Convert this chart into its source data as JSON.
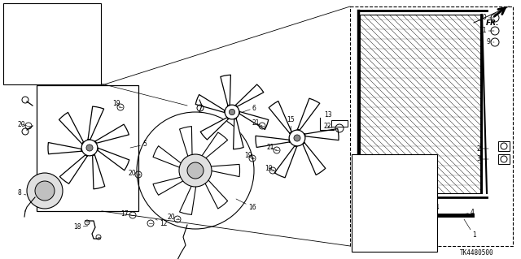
{
  "bg_color": "#ffffff",
  "diagram_code": "TK4480500",
  "fr_label": "FR.",
  "line_color": "#000000"
}
